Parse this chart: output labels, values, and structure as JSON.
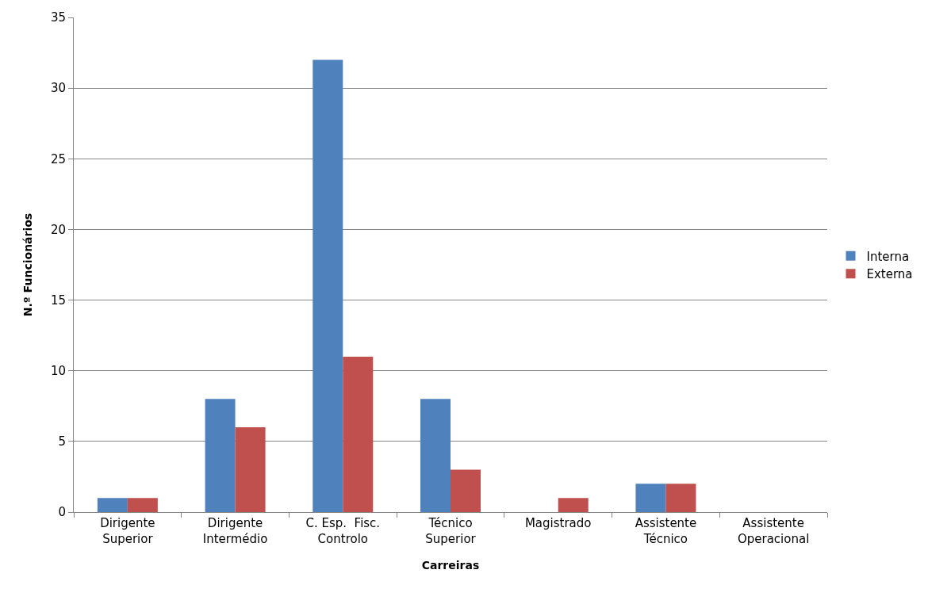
{
  "chart_data": {
    "type": "bar",
    "xlabel": "Carreiras",
    "ylabel": "N.º Funcionários",
    "categories": [
      "Dirigente\nSuperior",
      "Dirigente\nIntermédio",
      "C. Esp.  Fisc.\nControlo",
      "Técnico\nSuperior",
      "Magistrado",
      "Assistente\nTécnico",
      "Assistente\nOperacional"
    ],
    "series": [
      {
        "name": "Interna",
        "color": "#4f81bd",
        "values": [
          1,
          8,
          32,
          8,
          0,
          2,
          0
        ]
      },
      {
        "name": "Externa",
        "color": "#c0504d",
        "values": [
          1,
          6,
          11,
          3,
          1,
          2,
          0
        ]
      }
    ],
    "ylim": [
      0,
      35
    ],
    "yticks": [
      0,
      5,
      10,
      15,
      20,
      25,
      30,
      35
    ],
    "grid": "y",
    "legend": "right"
  }
}
